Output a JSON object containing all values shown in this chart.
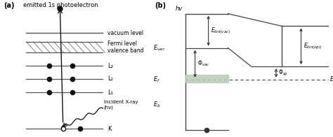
{
  "fig_width": 4.74,
  "fig_height": 1.96,
  "dpi": 100,
  "bg_color": "#ffffff",
  "panel_a": {
    "label": "(a)",
    "title": "emitted 1s photoelectron",
    "vacuum_level_label": "vacuum level",
    "fermi_label": "Fermi level\nvalence band",
    "L3_label": "L₃",
    "L2_label": "L₂",
    "L1_label": "L₁",
    "K_label": "K",
    "xray_label": "Incident X-ray\n(hν)",
    "line_color": "#555555",
    "dot_color": "#111111"
  },
  "panel_b": {
    "label": "(b)",
    "hv_label": "hv",
    "Evac_label": "$E_{vac}$",
    "Ef_label": "$E_f$",
    "Ef_right_label": "$E_f$",
    "Eb_label": "$E_b$",
    "Ekin_vac_label": "$E_{kin(vac)}$",
    "Ekin_spl_label": "$E_{kin(spl)}$",
    "Phi_vac_label": "$\\Phi_{vac}$",
    "Phi_sp_label": "$\\Phi_{sp}$",
    "line_color": "#444444",
    "arrow_color": "#333333",
    "fill_color": "#b8ccb8"
  }
}
